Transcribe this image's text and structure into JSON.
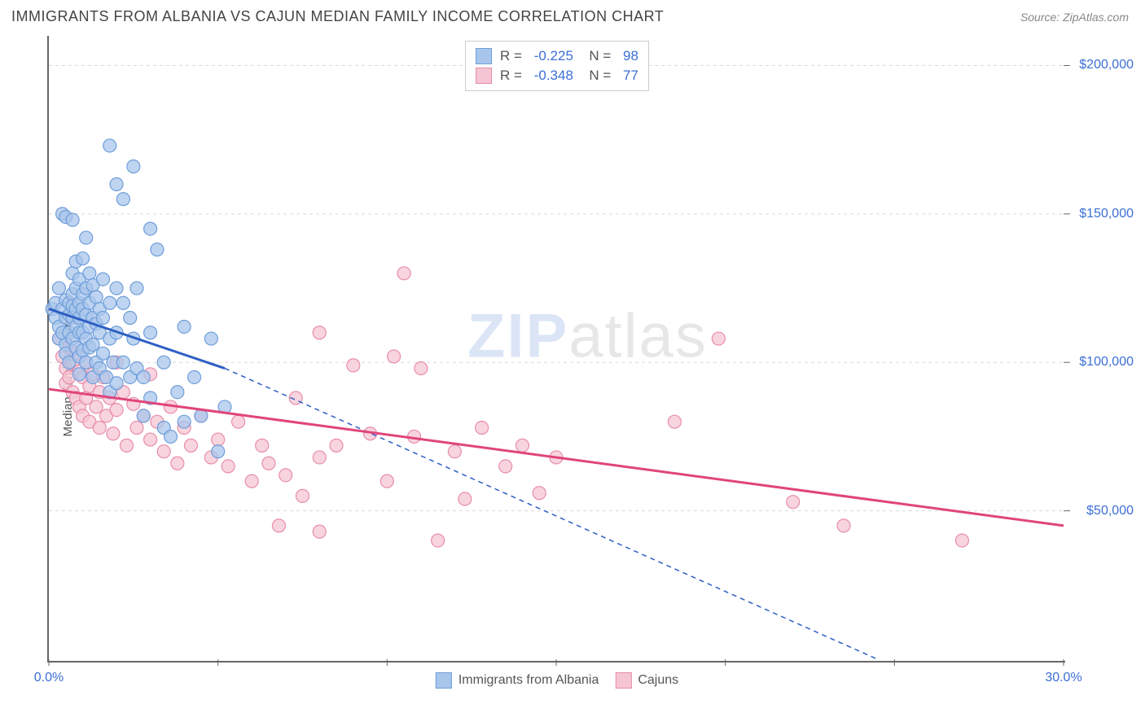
{
  "title": "IMMIGRANTS FROM ALBANIA VS CAJUN MEDIAN FAMILY INCOME CORRELATION CHART",
  "source": "Source: ZipAtlas.com",
  "ylabel": "Median Family Income",
  "watermark": {
    "zip": "ZIP",
    "atlas": "atlas"
  },
  "chart": {
    "type": "scatter",
    "background": "#ffffff",
    "plot_border_color": "#666666",
    "xlim": [
      0,
      30
    ],
    "ylim": [
      0,
      210000
    ],
    "x_tick_major": [
      0,
      5,
      10,
      15,
      20,
      25,
      30
    ],
    "x_tick_labels": {
      "0": "0.0%",
      "30": "30.0%"
    },
    "y_tick_major": [
      50000,
      100000,
      150000,
      200000
    ],
    "y_tick_labels": {
      "50000": "$50,000",
      "100000": "$100,000",
      "150000": "$150,000",
      "200000": "$200,000"
    },
    "grid_color": "#d9d9d9",
    "grid_dash": "4,4",
    "tick_color": "#666666",
    "ytick_label_color": "#3b6fd6",
    "xtick_label_color": "#3b6fd6",
    "series": [
      {
        "name": "Immigrants from Albania",
        "fill": "#a8c5eb",
        "stroke": "#6f9edb",
        "trend_stroke": "#2d5fc4",
        "trend_width": 3,
        "extrap_dash": "6,5",
        "marker_r": 8,
        "marker_opacity": 0.75,
        "R": "-0.225",
        "N": "98",
        "trend": {
          "x1": 0,
          "y1": 118000,
          "x2": 5.2,
          "y2": 98000
        },
        "extrap": {
          "x1": 5.2,
          "y1": 98000,
          "x2": 24.5,
          "y2": 0
        },
        "points": [
          [
            0.1,
            118000
          ],
          [
            0.2,
            120000
          ],
          [
            0.2,
            115000
          ],
          [
            0.3,
            125000
          ],
          [
            0.3,
            112000
          ],
          [
            0.3,
            108000
          ],
          [
            0.4,
            150000
          ],
          [
            0.4,
            118000
          ],
          [
            0.4,
            110000
          ],
          [
            0.5,
            149000
          ],
          [
            0.5,
            121000
          ],
          [
            0.5,
            115000
          ],
          [
            0.5,
            106000
          ],
          [
            0.5,
            103000
          ],
          [
            0.6,
            120000
          ],
          [
            0.6,
            116000
          ],
          [
            0.6,
            110000
          ],
          [
            0.6,
            100000
          ],
          [
            0.7,
            148000
          ],
          [
            0.7,
            130000
          ],
          [
            0.7,
            123000
          ],
          [
            0.7,
            119000
          ],
          [
            0.7,
            115000
          ],
          [
            0.7,
            108000
          ],
          [
            0.8,
            134000
          ],
          [
            0.8,
            125000
          ],
          [
            0.8,
            118000
          ],
          [
            0.8,
            112000
          ],
          [
            0.8,
            105000
          ],
          [
            0.9,
            128000
          ],
          [
            0.9,
            120000
          ],
          [
            0.9,
            115000
          ],
          [
            0.9,
            110000
          ],
          [
            0.9,
            102000
          ],
          [
            0.9,
            96000
          ],
          [
            1.0,
            135000
          ],
          [
            1.0,
            123000
          ],
          [
            1.0,
            118000
          ],
          [
            1.0,
            110000
          ],
          [
            1.0,
            104000
          ],
          [
            1.1,
            142000
          ],
          [
            1.1,
            125000
          ],
          [
            1.1,
            116000
          ],
          [
            1.1,
            108000
          ],
          [
            1.1,
            100000
          ],
          [
            1.2,
            130000
          ],
          [
            1.2,
            120000
          ],
          [
            1.2,
            112000
          ],
          [
            1.2,
            105000
          ],
          [
            1.3,
            126000
          ],
          [
            1.3,
            115000
          ],
          [
            1.3,
            106000
          ],
          [
            1.3,
            95000
          ],
          [
            1.4,
            122000
          ],
          [
            1.4,
            113000
          ],
          [
            1.4,
            100000
          ],
          [
            1.5,
            118000
          ],
          [
            1.5,
            110000
          ],
          [
            1.5,
            98000
          ],
          [
            1.6,
            128000
          ],
          [
            1.6,
            115000
          ],
          [
            1.6,
            103000
          ],
          [
            1.7,
            95000
          ],
          [
            1.8,
            173000
          ],
          [
            1.8,
            120000
          ],
          [
            1.8,
            108000
          ],
          [
            1.8,
            90000
          ],
          [
            1.9,
            100000
          ],
          [
            2.0,
            160000
          ],
          [
            2.0,
            125000
          ],
          [
            2.0,
            110000
          ],
          [
            2.0,
            93000
          ],
          [
            2.2,
            155000
          ],
          [
            2.2,
            120000
          ],
          [
            2.2,
            100000
          ],
          [
            2.4,
            115000
          ],
          [
            2.4,
            95000
          ],
          [
            2.5,
            166000
          ],
          [
            2.5,
            108000
          ],
          [
            2.6,
            125000
          ],
          [
            2.6,
            98000
          ],
          [
            2.8,
            95000
          ],
          [
            2.8,
            82000
          ],
          [
            3.0,
            145000
          ],
          [
            3.0,
            110000
          ],
          [
            3.0,
            88000
          ],
          [
            3.2,
            138000
          ],
          [
            3.4,
            100000
          ],
          [
            3.4,
            78000
          ],
          [
            3.6,
            75000
          ],
          [
            3.8,
            90000
          ],
          [
            4.0,
            112000
          ],
          [
            4.0,
            80000
          ],
          [
            4.3,
            95000
          ],
          [
            4.5,
            82000
          ],
          [
            4.8,
            108000
          ],
          [
            5.0,
            70000
          ],
          [
            5.2,
            85000
          ]
        ]
      },
      {
        "name": "Cajuns",
        "fill": "#f5c5d3",
        "stroke": "#e88da9",
        "trend_stroke": "#e0457a",
        "trend_width": 3,
        "marker_r": 8,
        "marker_opacity": 0.75,
        "R": "-0.348",
        "N": "77",
        "trend": {
          "x1": 0,
          "y1": 91000,
          "x2": 30,
          "y2": 45000
        },
        "points": [
          [
            0.3,
            108000
          ],
          [
            0.4,
            102000
          ],
          [
            0.5,
            98000
          ],
          [
            0.5,
            93000
          ],
          [
            0.6,
            105000
          ],
          [
            0.6,
            95000
          ],
          [
            0.7,
            100000
          ],
          [
            0.7,
            90000
          ],
          [
            0.8,
            103000
          ],
          [
            0.8,
            88000
          ],
          [
            0.9,
            97000
          ],
          [
            0.9,
            85000
          ],
          [
            1.0,
            95000
          ],
          [
            1.0,
            82000
          ],
          [
            1.1,
            100000
          ],
          [
            1.1,
            88000
          ],
          [
            1.2,
            92000
          ],
          [
            1.2,
            80000
          ],
          [
            1.3,
            96000
          ],
          [
            1.4,
            85000
          ],
          [
            1.5,
            90000
          ],
          [
            1.5,
            78000
          ],
          [
            1.6,
            95000
          ],
          [
            1.7,
            82000
          ],
          [
            1.8,
            88000
          ],
          [
            1.9,
            76000
          ],
          [
            2.0,
            100000
          ],
          [
            2.0,
            84000
          ],
          [
            2.2,
            90000
          ],
          [
            2.3,
            72000
          ],
          [
            2.5,
            86000
          ],
          [
            2.6,
            78000
          ],
          [
            2.8,
            82000
          ],
          [
            3.0,
            96000
          ],
          [
            3.0,
            74000
          ],
          [
            3.2,
            80000
          ],
          [
            3.4,
            70000
          ],
          [
            3.6,
            85000
          ],
          [
            3.8,
            66000
          ],
          [
            4.0,
            78000
          ],
          [
            4.2,
            72000
          ],
          [
            4.5,
            82000
          ],
          [
            4.8,
            68000
          ],
          [
            5.0,
            74000
          ],
          [
            5.3,
            65000
          ],
          [
            5.6,
            80000
          ],
          [
            6.0,
            60000
          ],
          [
            6.3,
            72000
          ],
          [
            6.5,
            66000
          ],
          [
            6.8,
            45000
          ],
          [
            7.0,
            62000
          ],
          [
            7.3,
            88000
          ],
          [
            7.5,
            55000
          ],
          [
            8.0,
            110000
          ],
          [
            8.0,
            68000
          ],
          [
            8.0,
            43000
          ],
          [
            8.5,
            72000
          ],
          [
            9.0,
            99000
          ],
          [
            9.5,
            76000
          ],
          [
            10.0,
            60000
          ],
          [
            10.2,
            102000
          ],
          [
            10.5,
            130000
          ],
          [
            10.8,
            75000
          ],
          [
            11.0,
            98000
          ],
          [
            11.5,
            40000
          ],
          [
            12.0,
            70000
          ],
          [
            12.3,
            54000
          ],
          [
            12.8,
            78000
          ],
          [
            13.5,
            65000
          ],
          [
            14.0,
            72000
          ],
          [
            14.5,
            56000
          ],
          [
            15.0,
            68000
          ],
          [
            18.5,
            80000
          ],
          [
            19.8,
            108000
          ],
          [
            22.0,
            53000
          ],
          [
            23.5,
            45000
          ],
          [
            27.0,
            40000
          ]
        ]
      }
    ]
  }
}
